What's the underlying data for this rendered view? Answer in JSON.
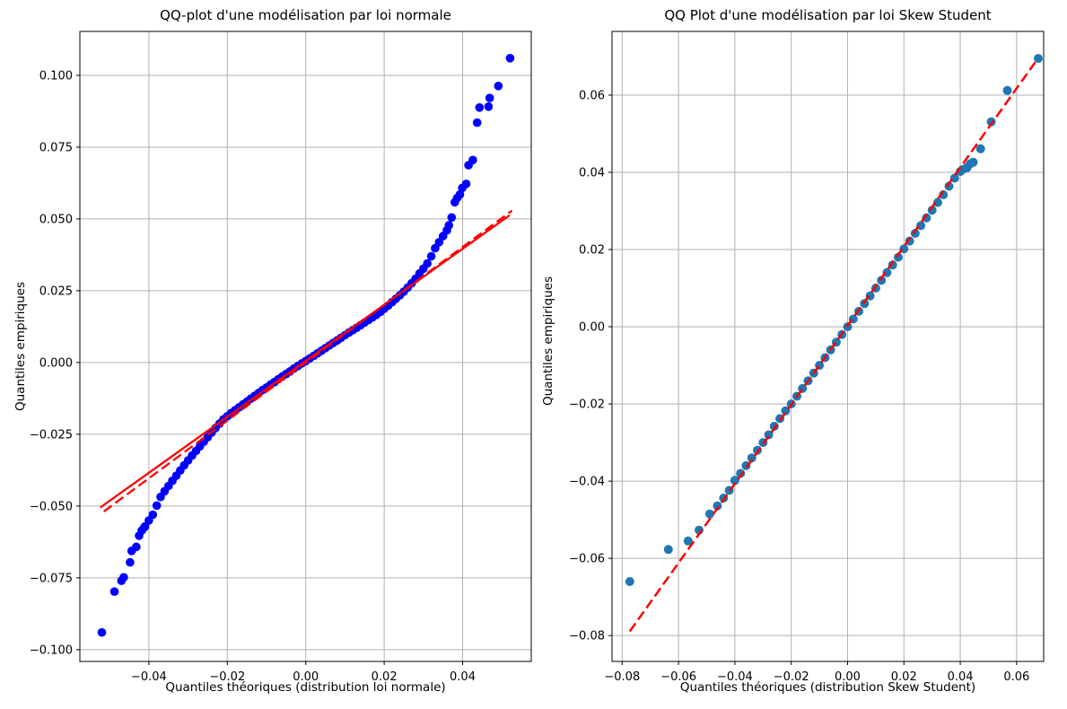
{
  "figure": {
    "background": "#ffffff",
    "grid_color": "#b0b0b0",
    "spine_color": "#000000"
  },
  "chart_data": [
    {
      "type": "scatter",
      "title": "QQ-plot d'une modélisation par loi normale",
      "xlabel": "Quantiles théoriques (distribution loi normale)",
      "ylabel": "Quantiles empiriques",
      "xlim": [
        -0.0576,
        0.0575
      ],
      "ylim": [
        -0.1041,
        0.1153
      ],
      "grid": true,
      "legend": "none",
      "xticks": [
        {
          "v": -0.04,
          "label": "−0.04"
        },
        {
          "v": -0.02,
          "label": "−0.02"
        },
        {
          "v": 0.0,
          "label": "0.00"
        },
        {
          "v": 0.02,
          "label": "0.02"
        },
        {
          "v": 0.04,
          "label": "0.04"
        }
      ],
      "yticks": [
        {
          "v": 0.1,
          "label": "0.100"
        },
        {
          "v": 0.075,
          "label": "0.075"
        },
        {
          "v": 0.05,
          "label": "0.050"
        },
        {
          "v": 0.025,
          "label": "0.025"
        },
        {
          "v": 0.0,
          "label": "0.000"
        },
        {
          "v": -0.025,
          "label": "−0.025"
        },
        {
          "v": -0.05,
          "label": "−0.050"
        },
        {
          "v": -0.075,
          "label": "−0.075"
        },
        {
          "v": -0.1,
          "label": "−0.100"
        }
      ],
      "marker": {
        "color": "#0000ff",
        "radius": 4.8
      },
      "points": [
        [
          -0.052,
          -0.094
        ],
        [
          -0.0488,
          -0.0798
        ],
        [
          -0.047,
          -0.076
        ],
        [
          -0.0464,
          -0.0748
        ],
        [
          -0.0448,
          -0.0696
        ],
        [
          -0.0444,
          -0.0656
        ],
        [
          -0.0432,
          -0.0642
        ],
        [
          -0.0425,
          -0.0603
        ],
        [
          -0.0418,
          -0.0585
        ],
        [
          -0.0412,
          -0.0575
        ],
        [
          -0.041,
          -0.0571
        ],
        [
          -0.04,
          -0.055
        ],
        [
          -0.039,
          -0.053
        ],
        [
          -0.038,
          -0.0498
        ],
        [
          -0.037,
          -0.0468
        ],
        [
          -0.036,
          -0.0448
        ],
        [
          -0.035,
          -0.043
        ],
        [
          -0.034,
          -0.0412
        ],
        [
          -0.033,
          -0.0394
        ],
        [
          -0.032,
          -0.0376
        ],
        [
          -0.031,
          -0.0358
        ],
        [
          -0.03,
          -0.0341
        ],
        [
          -0.029,
          -0.0324
        ],
        [
          -0.028,
          -0.0308
        ],
        [
          -0.027,
          -0.0292
        ],
        [
          -0.026,
          -0.0276
        ],
        [
          -0.025,
          -0.026
        ],
        [
          -0.024,
          -0.0244
        ],
        [
          -0.023,
          -0.0228
        ],
        [
          -0.022,
          -0.0213
        ],
        [
          -0.021,
          -0.0198
        ],
        [
          -0.02,
          -0.0187
        ],
        [
          -0.019,
          -0.0176
        ],
        [
          -0.018,
          -0.0166
        ],
        [
          -0.017,
          -0.0156
        ],
        [
          -0.016,
          -0.0146
        ],
        [
          -0.015,
          -0.0136
        ],
        [
          -0.014,
          -0.0126
        ],
        [
          -0.013,
          -0.0116
        ],
        [
          -0.012,
          -0.0106
        ],
        [
          -0.011,
          -0.0096
        ],
        [
          -0.01,
          -0.0087
        ],
        [
          -0.009,
          -0.0077
        ],
        [
          -0.008,
          -0.0068
        ],
        [
          -0.007,
          -0.0058
        ],
        [
          -0.006,
          -0.0049
        ],
        [
          -0.005,
          -0.004
        ],
        [
          -0.004,
          -0.0031
        ],
        [
          -0.003,
          -0.0021
        ],
        [
          -0.002,
          -0.0012
        ],
        [
          -0.001,
          -0.0003
        ],
        [
          0.0,
          0.0005
        ],
        [
          0.001,
          0.0014
        ],
        [
          0.002,
          0.0023
        ],
        [
          0.003,
          0.0032
        ],
        [
          0.004,
          0.0041
        ],
        [
          0.005,
          0.005
        ],
        [
          0.006,
          0.0059
        ],
        [
          0.007,
          0.0068
        ],
        [
          0.008,
          0.0077
        ],
        [
          0.009,
          0.0086
        ],
        [
          0.01,
          0.0095
        ],
        [
          0.011,
          0.0104
        ],
        [
          0.012,
          0.0113
        ],
        [
          0.013,
          0.0121
        ],
        [
          0.014,
          0.013
        ],
        [
          0.015,
          0.0139
        ],
        [
          0.016,
          0.0148
        ],
        [
          0.017,
          0.0157
        ],
        [
          0.018,
          0.0166
        ],
        [
          0.019,
          0.0176
        ],
        [
          0.02,
          0.0187
        ],
        [
          0.021,
          0.0198
        ],
        [
          0.022,
          0.021
        ],
        [
          0.023,
          0.0222
        ],
        [
          0.024,
          0.0234
        ],
        [
          0.025,
          0.0247
        ],
        [
          0.026,
          0.0261
        ],
        [
          0.027,
          0.0276
        ],
        [
          0.028,
          0.0292
        ],
        [
          0.029,
          0.031
        ],
        [
          0.03,
          0.0327
        ],
        [
          0.031,
          0.0345
        ],
        [
          0.032,
          0.037
        ],
        [
          0.033,
          0.0398
        ],
        [
          0.034,
          0.0419
        ],
        [
          0.035,
          0.044
        ],
        [
          0.036,
          0.046
        ],
        [
          0.0365,
          0.0478
        ],
        [
          0.0372,
          0.0505
        ],
        [
          0.038,
          0.0558
        ],
        [
          0.0386,
          0.0573
        ],
        [
          0.0393,
          0.0585
        ],
        [
          0.0399,
          0.0608
        ],
        [
          0.0409,
          0.0622
        ],
        [
          0.0415,
          0.0687
        ],
        [
          0.0426,
          0.0705
        ],
        [
          0.0437,
          0.0835
        ],
        [
          0.0443,
          0.0888
        ],
        [
          0.0466,
          0.0891
        ],
        [
          0.0469,
          0.0921
        ],
        [
          0.0491,
          0.0963
        ],
        [
          0.0521,
          0.106
        ]
      ],
      "lines": [
        {
          "name": "regression-line",
          "color": "#ff0000",
          "style": "solid",
          "width": 2.3,
          "from": [
            -0.0524,
            -0.0505
          ],
          "to": [
            0.052,
            0.0513
          ]
        },
        {
          "name": "identity-line",
          "color": "#ff0000",
          "style": "dashed",
          "width": 2.3,
          "from": [
            -0.0515,
            -0.0519
          ],
          "to": [
            0.0526,
            0.0529
          ]
        }
      ]
    },
    {
      "type": "scatter",
      "title": "QQ Plot d'une modélisation par loi Skew Student",
      "xlabel": "Quantiles théoriques (distribution Skew Student)",
      "ylabel": "Quantiles empiriques",
      "xlim": [
        -0.0836,
        0.0696
      ],
      "ylim": [
        -0.0867,
        0.0765
      ],
      "grid": true,
      "legend": "none",
      "xticks": [
        {
          "v": -0.08,
          "label": "−0.08"
        },
        {
          "v": -0.06,
          "label": "−0.06"
        },
        {
          "v": -0.04,
          "label": "−0.04"
        },
        {
          "v": -0.02,
          "label": "−0.02"
        },
        {
          "v": 0.0,
          "label": "0.00"
        },
        {
          "v": 0.02,
          "label": "0.02"
        },
        {
          "v": 0.04,
          "label": "0.04"
        },
        {
          "v": 0.06,
          "label": "0.06"
        }
      ],
      "yticks": [
        {
          "v": 0.06,
          "label": "0.06"
        },
        {
          "v": 0.04,
          "label": "0.04"
        },
        {
          "v": 0.02,
          "label": "0.02"
        },
        {
          "v": 0.0,
          "label": "0.00"
        },
        {
          "v": -0.02,
          "label": "−0.02"
        },
        {
          "v": -0.04,
          "label": "−0.04"
        },
        {
          "v": -0.06,
          "label": "−0.06"
        },
        {
          "v": -0.08,
          "label": "−0.08"
        }
      ],
      "marker": {
        "color": "#1f77b4",
        "radius": 5
      },
      "points": [
        [
          -0.0773,
          -0.066
        ],
        [
          -0.0636,
          -0.0577
        ],
        [
          -0.0566,
          -0.0555
        ],
        [
          -0.0527,
          -0.0527
        ],
        [
          -0.0489,
          -0.0485
        ],
        [
          -0.0462,
          -0.0464
        ],
        [
          -0.044,
          -0.0444
        ],
        [
          -0.042,
          -0.0424
        ],
        [
          -0.04,
          -0.0398
        ],
        [
          -0.038,
          -0.038
        ],
        [
          -0.036,
          -0.036
        ],
        [
          -0.034,
          -0.034
        ],
        [
          -0.032,
          -0.032
        ],
        [
          -0.03,
          -0.03
        ],
        [
          -0.028,
          -0.028
        ],
        [
          -0.026,
          -0.0258
        ],
        [
          -0.024,
          -0.0238
        ],
        [
          -0.022,
          -0.0218
        ],
        [
          -0.02,
          -0.02
        ],
        [
          -0.018,
          -0.018
        ],
        [
          -0.016,
          -0.016
        ],
        [
          -0.014,
          -0.014
        ],
        [
          -0.012,
          -0.012
        ],
        [
          -0.01,
          -0.01
        ],
        [
          -0.008,
          -0.008
        ],
        [
          -0.006,
          -0.006
        ],
        [
          -0.004,
          -0.004
        ],
        [
          -0.002,
          -0.002
        ],
        [
          0.0,
          0.0
        ],
        [
          0.002,
          0.002
        ],
        [
          0.004,
          0.004
        ],
        [
          0.006,
          0.006
        ],
        [
          0.008,
          0.008
        ],
        [
          0.01,
          0.01
        ],
        [
          0.012,
          0.012
        ],
        [
          0.014,
          0.014
        ],
        [
          0.016,
          0.016
        ],
        [
          0.018,
          0.018
        ],
        [
          0.02,
          0.0202
        ],
        [
          0.022,
          0.0222
        ],
        [
          0.024,
          0.0242
        ],
        [
          0.026,
          0.0262
        ],
        [
          0.028,
          0.0282
        ],
        [
          0.03,
          0.0302
        ],
        [
          0.032,
          0.0322
        ],
        [
          0.034,
          0.0342
        ],
        [
          0.036,
          0.0364
        ],
        [
          0.038,
          0.0385
        ],
        [
          0.04,
          0.0402
        ],
        [
          0.0408,
          0.0407
        ],
        [
          0.0424,
          0.0412
        ],
        [
          0.0435,
          0.0422
        ],
        [
          0.0446,
          0.0426
        ],
        [
          0.0472,
          0.0461
        ],
        [
          0.051,
          0.0531
        ],
        [
          0.0567,
          0.0612
        ],
        [
          0.0677,
          0.0695
        ]
      ],
      "lines": [
        {
          "name": "identity-line",
          "color": "#ff0000",
          "style": "dashed",
          "width": 2.5,
          "from": [
            -0.0773,
            -0.0789
          ],
          "to": [
            0.0666,
            0.0685
          ]
        }
      ]
    }
  ]
}
